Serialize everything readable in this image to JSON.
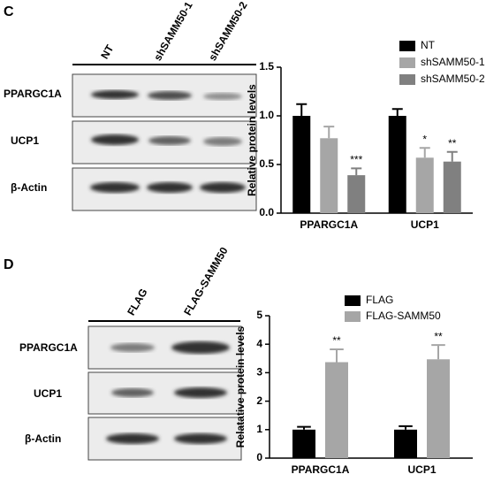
{
  "panels": [
    {
      "label": "C",
      "lanes": [
        "NT",
        "shSAMM50-1",
        "shSAMM50-2"
      ],
      "rows": [
        "PPARGC1A",
        "UCP1",
        "β-Actin"
      ]
    },
    {
      "label": "D",
      "lanes": [
        "FLAG",
        "FLAG-SAMM50"
      ],
      "rows": [
        "PPARGC1A",
        "UCP1",
        "β-Actin"
      ]
    }
  ],
  "chart_data": [
    {
      "type": "bar",
      "y_label": "Relative protein levels",
      "categories": [
        "PPARGC1A",
        "UCP1"
      ],
      "series": [
        {
          "name": "NT",
          "color": "#000000",
          "values": [
            1.0,
            1.0
          ],
          "errors": [
            0.12,
            0.07
          ],
          "annotations": [
            null,
            null
          ]
        },
        {
          "name": "shSAMM50-1",
          "color": "#a6a6a6",
          "values": [
            0.77,
            0.57
          ],
          "errors": [
            0.12,
            0.1
          ],
          "annotations": [
            null,
            "*"
          ]
        },
        {
          "name": "shSAMM50-2",
          "color": "#808080",
          "values": [
            0.39,
            0.53
          ],
          "errors": [
            0.07,
            0.1
          ],
          "annotations": [
            "***",
            "**"
          ]
        }
      ],
      "ylim": [
        0,
        1.5
      ],
      "yticks": [
        {
          "value": 0,
          "label": "0.0"
        },
        0.5,
        {
          "value": 1,
          "label": "1.0"
        },
        1.5
      ],
      "legend": "top-right"
    },
    {
      "type": "bar",
      "y_label": "Relatative protein levels",
      "categories": [
        "PPARGC1A",
        "UCP1"
      ],
      "series": [
        {
          "name": "FLAG",
          "color": "#000000",
          "values": [
            1.0,
            1.0
          ],
          "errors": [
            0.1,
            0.12
          ],
          "annotations": [
            null,
            null
          ]
        },
        {
          "name": "FLAG-SAMM50",
          "color": "#a6a6a6",
          "values": [
            3.37,
            3.47
          ],
          "errors": [
            0.45,
            0.5
          ],
          "annotations": [
            "**",
            "**"
          ]
        }
      ],
      "ylim": [
        0,
        5
      ],
      "yticks": [
        0,
        1,
        2,
        3,
        4,
        5
      ],
      "legend": "top-right"
    }
  ]
}
